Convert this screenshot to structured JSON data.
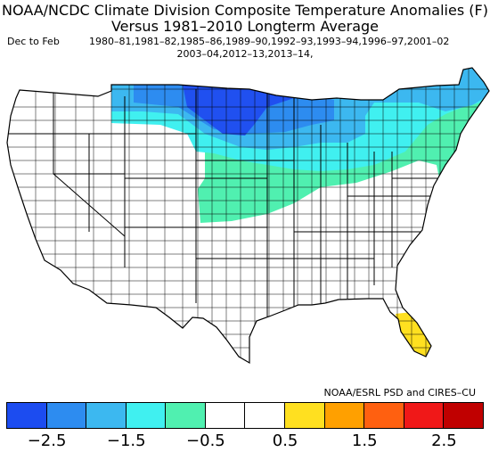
{
  "title_line1": "NOAA/NCDC Climate Division Composite Temperature Anomalies (F)",
  "title_line2": "Versus 1981–2010 Longterm Average",
  "season": "Dec to Feb",
  "years_line1": "1980–81,1981–82,1985–86,1989–90,1992–93,1993–94,1996–97,2001–02",
  "years_line2": "2003–04,2012–13,2013–14,",
  "credit": "NOAA/ESRL PSD and CIRES–CU",
  "colorbar": {
    "colors": [
      "#1c4cf0",
      "#2d8cf0",
      "#3cb8f0",
      "#40f0f0",
      "#50f0b0",
      "#ffffff",
      "#ffffff",
      "#ffe020",
      "#ffa000",
      "#ff6010",
      "#f01818",
      "#c00000"
    ],
    "ticks": [
      "−2.5",
      "−1.5",
      "−0.5",
      "0.5",
      "1.5",
      "2.5"
    ],
    "tick_values": [
      -2.5,
      -1.5,
      -0.5,
      0.5,
      1.5,
      2.5
    ],
    "range": [
      -3.0,
      3.0
    ]
  },
  "map_colors": {
    "deep_blue": "#2050f0",
    "mid_blue": "#2d8cf0",
    "light_blue": "#3cb8f0",
    "cyan": "#40f0f0",
    "teal": "#50f0b0",
    "yellow": "#ffe020"
  }
}
